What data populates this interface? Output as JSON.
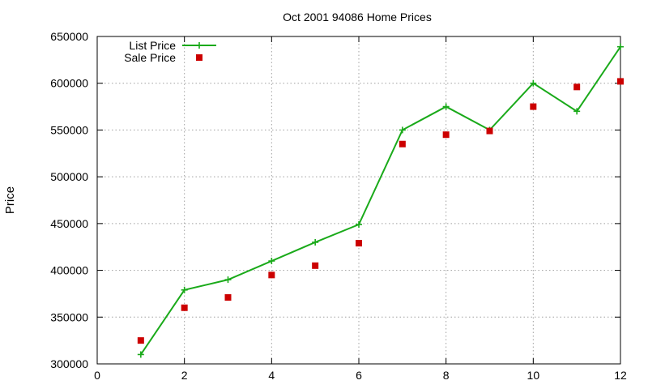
{
  "chart_data": {
    "type": "line",
    "title": "Oct 2001 94086 Home Prices",
    "xlabel": "",
    "ylabel": "Price",
    "xlim": [
      0,
      12
    ],
    "ylim": [
      300000,
      650000
    ],
    "x_ticks": [
      0,
      2,
      4,
      6,
      8,
      10,
      12
    ],
    "y_ticks": [
      300000,
      350000,
      400000,
      450000,
      500000,
      550000,
      600000,
      650000
    ],
    "grid": true,
    "legend_position": "top-left",
    "x": [
      1,
      2,
      3,
      4,
      5,
      6,
      7,
      8,
      9,
      10,
      11,
      12
    ],
    "series": [
      {
        "name": "List Price",
        "style": "line+cross",
        "color": "#1aaa1a",
        "values": [
          310000,
          379000,
          390000,
          410000,
          430000,
          449000,
          550000,
          575000,
          550000,
          600000,
          570000,
          639000
        ]
      },
      {
        "name": "Sale Price",
        "style": "square-points",
        "color": "#cc0000",
        "values": [
          325000,
          360000,
          371000,
          395000,
          405000,
          429000,
          535000,
          545000,
          549000,
          575000,
          596000,
          602000
        ]
      }
    ]
  }
}
